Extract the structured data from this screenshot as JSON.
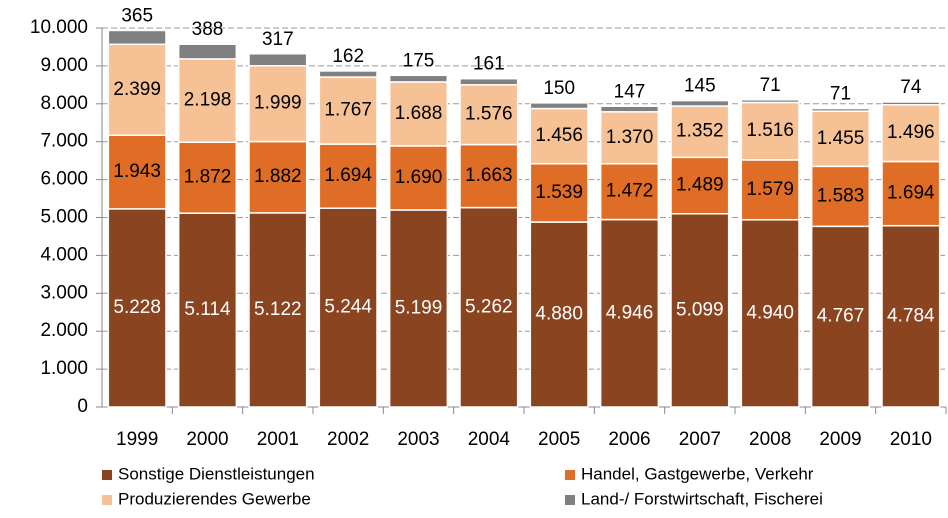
{
  "chart_data": {
    "type": "stacked_bar",
    "categories": [
      "1999",
      "2000",
      "2001",
      "2002",
      "2003",
      "2004",
      "2005",
      "2006",
      "2007",
      "2008",
      "2009",
      "2010"
    ],
    "series": [
      {
        "name": "Sonstige Dienstleistungen",
        "color": "#8b4420",
        "label_color": "#ffffff",
        "values": [
          5228,
          5114,
          5122,
          5244,
          5199,
          5262,
          4880,
          4946,
          5099,
          4940,
          4767,
          4784
        ],
        "value_labels": [
          "5.228",
          "5.114",
          "5.122",
          "5.244",
          "5.199",
          "5.262",
          "4.880",
          "4.946",
          "5.099",
          "4.940",
          "4.767",
          "4.784"
        ]
      },
      {
        "name": "Handel, Gastgewerbe, Verkehr",
        "color": "#df6d26",
        "label_color": "#000000",
        "values": [
          1943,
          1872,
          1882,
          1694,
          1690,
          1663,
          1539,
          1472,
          1489,
          1579,
          1583,
          1694
        ],
        "value_labels": [
          "1.943",
          "1.872",
          "1.882",
          "1.694",
          "1.690",
          "1.663",
          "1.539",
          "1.472",
          "1.489",
          "1.579",
          "1.583",
          "1.694"
        ]
      },
      {
        "name": "Produzierendes Gewerbe",
        "color": "#f6c195",
        "label_color": "#000000",
        "values": [
          2399,
          2198,
          1999,
          1767,
          1688,
          1576,
          1456,
          1370,
          1352,
          1516,
          1455,
          1496
        ],
        "value_labels": [
          "2.399",
          "2.198",
          "1.999",
          "1.767",
          "1.688",
          "1.576",
          "1.456",
          "1.370",
          "1.352",
          "1.516",
          "1.455",
          "1.496"
        ]
      },
      {
        "name": "Land-/ Forstwirtschaft, Fischerei",
        "color": "#808080",
        "label_color": "#000000",
        "label_above": true,
        "values": [
          365,
          388,
          317,
          162,
          175,
          161,
          150,
          147,
          145,
          71,
          71,
          74
        ]
      }
    ],
    "ylim": [
      0,
      10000
    ],
    "yticks": [
      0,
      {
        "value": 1000,
        "label": "1.000"
      },
      {
        "value": 2000,
        "label": "2.000"
      },
      {
        "value": 3000,
        "label": "3.000"
      },
      {
        "value": 4000,
        "label": "4.000"
      },
      {
        "value": 5000,
        "label": "5.000"
      },
      {
        "value": 6000,
        "label": "6.000"
      },
      {
        "value": 7000,
        "label": "7.000"
      },
      {
        "value": 8000,
        "label": "8.000"
      },
      {
        "value": 9000,
        "label": "9.000"
      },
      {
        "value": 10000,
        "label": "10.000"
      }
    ],
    "grid": true,
    "legend": "bottom"
  }
}
